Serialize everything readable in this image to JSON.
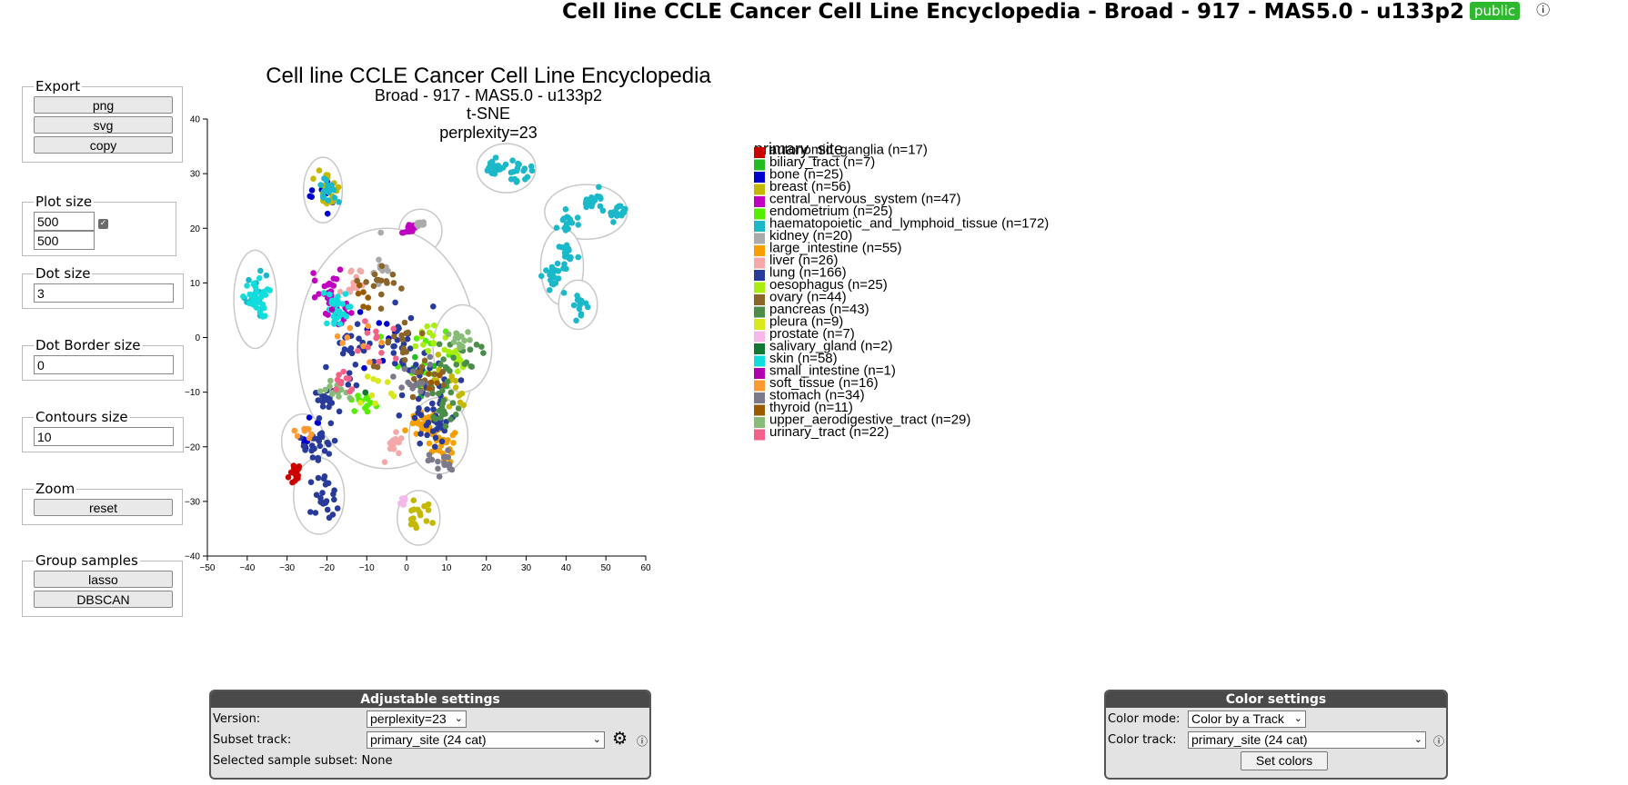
{
  "header": {
    "title": "Cell line CCLE Cancer Cell Line Encyclopedia - Broad - 917 - MAS5.0 - u133p2",
    "badge": "public",
    "info_icon": "ⓘ"
  },
  "controls": {
    "export": {
      "legend": "Export",
      "buttons": [
        "png",
        "svg",
        "copy"
      ]
    },
    "plot_size": {
      "legend": "Plot size",
      "width": "500",
      "height": "500",
      "linked": true
    },
    "dot_size": {
      "legend": "Dot size",
      "value": "3"
    },
    "dot_border": {
      "legend": "Dot Border size",
      "value": "0"
    },
    "contours": {
      "legend": "Contours size",
      "value": "10"
    },
    "zoom": {
      "legend": "Zoom",
      "reset_label": "reset"
    },
    "group": {
      "legend": "Group samples",
      "lasso_label": "lasso",
      "dbscan_label": "DBSCAN"
    }
  },
  "adjustable": {
    "title": "Adjustable settings",
    "version_label": "Version:",
    "version_value": "perplexity=23",
    "subset_label": "Subset track:",
    "subset_value": "primary_site (24 cat)",
    "selected_label": "Selected sample subset:",
    "selected_value": "None"
  },
  "color_settings": {
    "title": "Color settings",
    "mode_label": "Color mode:",
    "mode_value": "Color by a Track",
    "track_label": "Color track:",
    "track_value": "primary_site (24 cat)",
    "set_colors_label": "Set colors"
  },
  "chart_data": {
    "type": "scatter",
    "title": "Cell line CCLE Cancer Cell Line Encyclopedia",
    "subtitle_lines": [
      "Broad - 917 - MAS5.0 - u133p2",
      "t-SNE",
      "perplexity=23"
    ],
    "xlim": [
      -50,
      60
    ],
    "ylim": [
      -40,
      40
    ],
    "xticks": [
      -50,
      -40,
      -30,
      -20,
      -10,
      0,
      10,
      20,
      30,
      40,
      50,
      60
    ],
    "yticks": [
      -40,
      -30,
      -20,
      -10,
      0,
      10,
      20,
      30,
      40
    ],
    "contours": true,
    "legend_title": "primary_site",
    "legend_position": "right",
    "series": [
      {
        "name": "autonomic_ganglia (n=17)",
        "color": "#cc0000",
        "clusters": [
          [
            -28,
            -25,
            1.5,
            2
          ]
        ]
      },
      {
        "name": "biliary_tract (n=7)",
        "color": "#22bb22",
        "clusters": [
          [
            5,
            -5,
            8,
            4
          ]
        ]
      },
      {
        "name": "bone (n=25)",
        "color": "#0000cc",
        "clusters": [
          [
            -21,
            26,
            3,
            3
          ],
          [
            -24,
            -18,
            2,
            3
          ],
          [
            -5,
            -2,
            10,
            8
          ]
        ]
      },
      {
        "name": "breast (n=56)",
        "color": "#c5b800",
        "clusters": [
          [
            3,
            -33,
            3,
            3
          ],
          [
            -20,
            27,
            3,
            3
          ],
          [
            10,
            -10,
            6,
            5
          ]
        ]
      },
      {
        "name": "central_nervous_system (n=47)",
        "color": "#c000c0",
        "clusters": [
          [
            -20,
            10,
            4,
            3
          ],
          [
            1,
            20,
            2,
            1
          ],
          [
            -18,
            5,
            4,
            4
          ]
        ]
      },
      {
        "name": "endometrium (n=25)",
        "color": "#55ee00",
        "clusters": [
          [
            -10,
            -12,
            4,
            3
          ],
          [
            5,
            -3,
            6,
            5
          ]
        ]
      },
      {
        "name": "haematopoietic_and_lymphoid_tissue (n=172)",
        "color": "#1ab8c8",
        "clusters": [
          [
            -38,
            8,
            2.5,
            3.5
          ],
          [
            22,
            31,
            2.5,
            1.5
          ],
          [
            29,
            31,
            2.5,
            2
          ],
          [
            40,
            21,
            3,
            2
          ],
          [
            47,
            25,
            2.5,
            2
          ],
          [
            53,
            23,
            2,
            1
          ],
          [
            40,
            15,
            2,
            2
          ],
          [
            37,
            11,
            2,
            2
          ],
          [
            43,
            6,
            2,
            2
          ],
          [
            -20,
            27,
            2,
            2
          ]
        ]
      },
      {
        "name": "kidney (n=20)",
        "color": "#aaaaaa",
        "clusters": [
          [
            -6,
            12,
            2,
            4
          ],
          [
            3,
            21,
            2,
            1
          ]
        ]
      },
      {
        "name": "large_intestine (n=55)",
        "color": "#f5a000",
        "clusters": [
          [
            9,
            -20,
            4,
            3
          ],
          [
            4,
            -16,
            3,
            2
          ]
        ]
      },
      {
        "name": "liver (n=26)",
        "color": "#f5a8a8",
        "clusters": [
          [
            -3,
            -20,
            2,
            2
          ],
          [
            -13,
            10,
            3,
            3
          ]
        ]
      },
      {
        "name": "lung (n=166)",
        "color": "#283a9a",
        "clusters": [
          [
            -21,
            -29,
            4,
            4
          ],
          [
            -22,
            -20,
            3,
            3
          ],
          [
            0,
            -1,
            6,
            6
          ],
          [
            -14,
            -3,
            6,
            6
          ],
          [
            5,
            -10,
            5,
            5
          ],
          [
            7,
            -16,
            4,
            3
          ],
          [
            -20,
            -12,
            3,
            3
          ]
        ]
      },
      {
        "name": "oesophagus (n=25)",
        "color": "#aaee11",
        "clusters": [
          [
            13,
            -4,
            4,
            3
          ],
          [
            6,
            0,
            4,
            3
          ]
        ]
      },
      {
        "name": "ovary (n=44)",
        "color": "#8a6428",
        "clusters": [
          [
            -6,
            10,
            4,
            3
          ],
          [
            -2,
            0,
            8,
            6
          ],
          [
            5,
            -8,
            5,
            4
          ]
        ]
      },
      {
        "name": "pancreas (n=43)",
        "color": "#4a8e4a",
        "clusters": [
          [
            9,
            -12,
            4,
            4
          ],
          [
            14,
            -3,
            4,
            3
          ]
        ]
      },
      {
        "name": "pleura (n=9)",
        "color": "#d8e81a",
        "clusters": [
          [
            -8,
            -10,
            6,
            4
          ]
        ]
      },
      {
        "name": "prostate (n=7)",
        "color": "#f6b8e8",
        "clusters": [
          [
            -1,
            -30,
            1,
            1
          ]
        ]
      },
      {
        "name": "salivary_gland (n=2)",
        "color": "#117733",
        "clusters": [
          [
            -10,
            -10,
            1,
            1
          ]
        ]
      },
      {
        "name": "skin (n=58)",
        "color": "#11dddd",
        "clusters": [
          [
            -38,
            7,
            3,
            3
          ],
          [
            -18,
            5,
            3,
            3
          ]
        ]
      },
      {
        "name": "small_intestine (n=1)",
        "color": "#b000b0",
        "clusters": [
          [
            -19,
            5,
            0.5,
            0.5
          ]
        ]
      },
      {
        "name": "soft_tissue (n=16)",
        "color": "#ff9a33",
        "clusters": [
          [
            -26,
            -17,
            2,
            2
          ],
          [
            -12,
            -1,
            6,
            4
          ]
        ]
      },
      {
        "name": "stomach (n=34)",
        "color": "#7a7a8a",
        "clusters": [
          [
            9,
            -23,
            3,
            2
          ],
          [
            2,
            -8,
            5,
            4
          ]
        ]
      },
      {
        "name": "thyroid (n=11)",
        "color": "#9a5a00",
        "clusters": [
          [
            -10,
            8,
            3,
            3
          ],
          [
            6,
            -8,
            3,
            3
          ]
        ]
      },
      {
        "name": "upper_aerodigestive_tract (n=29)",
        "color": "#88bb77",
        "clusters": [
          [
            14,
            -1,
            3,
            2
          ],
          [
            -18,
            -10,
            3,
            2
          ]
        ]
      },
      {
        "name": "urinary_tract (n=22)",
        "color": "#f56088",
        "clusters": [
          [
            -16,
            -8,
            3,
            3
          ],
          [
            -7,
            0,
            6,
            5
          ]
        ]
      }
    ],
    "contour_groups": [
      [
        -38,
        7,
        4,
        8
      ],
      [
        -21,
        27,
        3.5,
        5
      ],
      [
        3.5,
        19.5,
        4,
        3
      ],
      [
        25,
        31,
        6,
        3.5
      ],
      [
        45,
        23,
        9,
        4
      ],
      [
        39,
        13,
        4,
        6
      ],
      [
        43,
        6,
        3.5,
        3.5
      ],
      [
        -5,
        -2,
        21,
        21
      ],
      [
        -26,
        -19,
        4,
        4
      ],
      [
        -22,
        -29,
        5,
        6
      ],
      [
        3,
        -33,
        4,
        4
      ],
      [
        8,
        -18,
        6,
        6
      ],
      [
        14,
        -2,
        6,
        7
      ]
    ]
  }
}
